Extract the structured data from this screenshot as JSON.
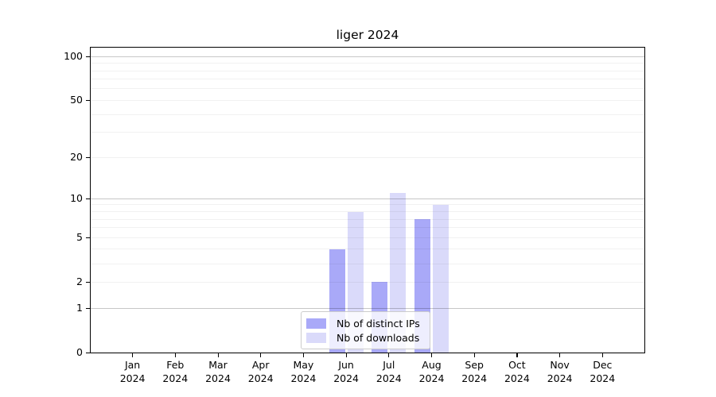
{
  "chart_data": {
    "type": "bar",
    "title": "liger 2024",
    "x_axis": {
      "months": [
        "Jan",
        "Feb",
        "Mar",
        "Apr",
        "May",
        "Jun",
        "Jul",
        "Aug",
        "Sep",
        "Oct",
        "Nov",
        "Dec"
      ],
      "year": "2024"
    },
    "y_axis": {
      "scale": "log1p",
      "ticks": [
        0,
        1,
        2,
        5,
        10,
        20,
        50,
        100
      ],
      "minor_gridlines": [
        2,
        3,
        4,
        5,
        6,
        7,
        8,
        9,
        20,
        30,
        40,
        50,
        60,
        70,
        80,
        90
      ],
      "major_gridlines": [
        1,
        10,
        100
      ],
      "ylim": [
        0,
        115
      ],
      "grid": "on"
    },
    "series": [
      {
        "name": "Nb of distinct IPs",
        "color": "#a9a9f8",
        "values": [
          null,
          null,
          null,
          null,
          null,
          4,
          2,
          7,
          null,
          null,
          null,
          null
        ]
      },
      {
        "name": "Nb of downloads",
        "color": "#dadafa",
        "values": [
          null,
          null,
          null,
          null,
          null,
          8,
          11,
          9,
          null,
          null,
          null,
          null
        ]
      }
    ],
    "legend": {
      "position": "lower center"
    }
  }
}
